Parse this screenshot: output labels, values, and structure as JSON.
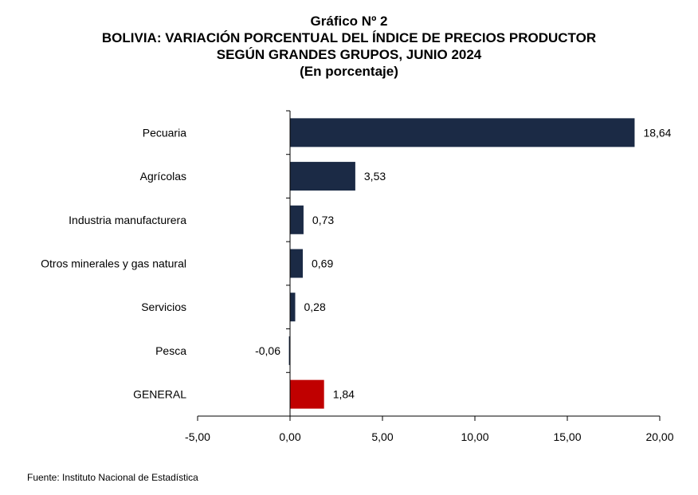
{
  "chart_data": {
    "type": "bar",
    "orientation": "horizontal",
    "title_lines": [
      "Gráfico Nº 2",
      "BOLIVIA: VARIACIÓN PORCENTUAL DEL ÍNDICE DE PRECIOS PRODUCTOR",
      "SEGÚN GRANDES GRUPOS, JUNIO 2024",
      "(En porcentaje)"
    ],
    "categories": [
      "Pecuaria",
      "Agrícolas",
      "Industria manufacturera",
      "Otros minerales y gas natural",
      "Servicios",
      "Pesca",
      "GENERAL"
    ],
    "values": [
      18.64,
      3.53,
      0.73,
      0.69,
      0.28,
      -0.06,
      1.84
    ],
    "value_labels": [
      "18,64",
      "3,53",
      "0,73",
      "0,69",
      "0,28",
      "-0,06",
      "1,84"
    ],
    "highlight_category": "GENERAL",
    "xlim": [
      -5,
      20
    ],
    "xticks": [
      -5,
      0,
      5,
      10,
      15,
      20
    ],
    "xtick_labels": [
      "-5,00",
      "0,00",
      "5,00",
      "10,00",
      "15,00",
      "20,00"
    ],
    "grid": false,
    "colors": {
      "bar": "#1b2a45",
      "highlight": "#c00000",
      "axis": "#000000"
    }
  },
  "source": "Fuente: Instituto Nacional de Estadística"
}
